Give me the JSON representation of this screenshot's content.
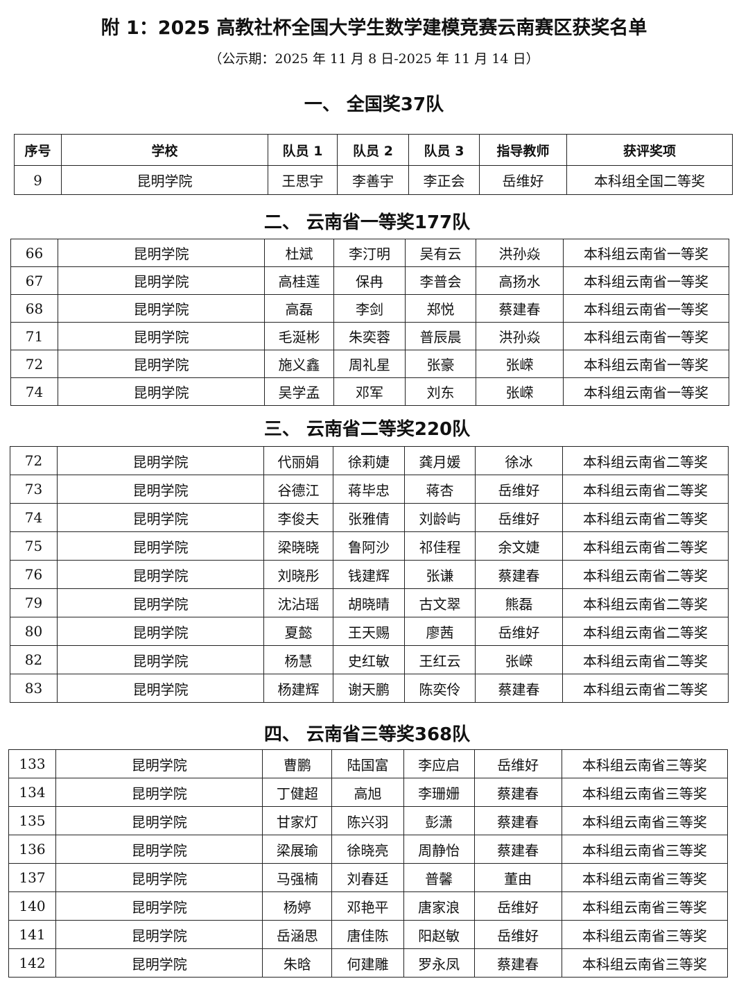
{
  "title": "附 1：2025 高教社杯全国大学生数学建模竞赛云南赛区获奖名单",
  "subtitle": "（公示期：2025 年 11 月 8 日-2025 年 11 月 14 日）",
  "columns": [
    "序号",
    "学校",
    "队员 1",
    "队员 2",
    "队员 3",
    "指导教师",
    "获评奖项"
  ],
  "sections": [
    {
      "heading": "一、  全国奖37队",
      "rows": [
        [
          "9",
          "昆明学院",
          "王思宇",
          "李善宇",
          "李正会",
          "岳维好",
          "本科组全国二等奖"
        ]
      ]
    },
    {
      "heading": "二、  云南省一等奖177队",
      "rows": [
        [
          "66",
          "昆明学院",
          "杜斌",
          "李汀明",
          "吴有云",
          "洪孙焱",
          "本科组云南省一等奖"
        ],
        [
          "67",
          "昆明学院",
          "高桂莲",
          "保冉",
          "李普会",
          "高扬水",
          "本科组云南省一等奖"
        ],
        [
          "68",
          "昆明学院",
          "高磊",
          "李剑",
          "郑悦",
          "蔡建春",
          "本科组云南省一等奖"
        ],
        [
          "71",
          "昆明学院",
          "毛涎彬",
          "朱奕蓉",
          "普辰晨",
          "洪孙焱",
          "本科组云南省一等奖"
        ],
        [
          "72",
          "昆明学院",
          "施义鑫",
          "周礼星",
          "张豪",
          "张嵘",
          "本科组云南省一等奖"
        ],
        [
          "74",
          "昆明学院",
          "吴学孟",
          "邓军",
          "刘东",
          "张嵘",
          "本科组云南省一等奖"
        ]
      ]
    },
    {
      "heading": "三、  云南省二等奖220队",
      "rows": [
        [
          "72",
          "昆明学院",
          "代丽娟",
          "徐莉婕",
          "龚月媛",
          "徐冰",
          "本科组云南省二等奖"
        ],
        [
          "73",
          "昆明学院",
          "谷德江",
          "蒋毕忠",
          "蒋杏",
          "岳维好",
          "本科组云南省二等奖"
        ],
        [
          "74",
          "昆明学院",
          "李俊夫",
          "张雅倩",
          "刘龄屿",
          "岳维好",
          "本科组云南省二等奖"
        ],
        [
          "75",
          "昆明学院",
          "梁晓晓",
          "鲁阿沙",
          "祁佳程",
          "余文婕",
          "本科组云南省二等奖"
        ],
        [
          "76",
          "昆明学院",
          "刘晓彤",
          "钱建辉",
          "张谦",
          "蔡建春",
          "本科组云南省二等奖"
        ],
        [
          "79",
          "昆明学院",
          "沈沾瑶",
          "胡晓晴",
          "古文翠",
          "熊磊",
          "本科组云南省二等奖"
        ],
        [
          "80",
          "昆明学院",
          "夏懿",
          "王天赐",
          "廖茜",
          "岳维好",
          "本科组云南省二等奖"
        ],
        [
          "82",
          "昆明学院",
          "杨慧",
          "史红敏",
          "王红云",
          "张嵘",
          "本科组云南省二等奖"
        ],
        [
          "83",
          "昆明学院",
          "杨建辉",
          "谢天鹏",
          "陈奕伶",
          "蔡建春",
          "本科组云南省二等奖"
        ]
      ]
    },
    {
      "heading": "四、  云南省三等奖368队",
      "rows": [
        [
          "133",
          "昆明学院",
          "曹鹏",
          "陆国富",
          "李应启",
          "岳维好",
          "本科组云南省三等奖"
        ],
        [
          "134",
          "昆明学院",
          "丁健超",
          "高旭",
          "李珊姗",
          "蔡建春",
          "本科组云南省三等奖"
        ],
        [
          "135",
          "昆明学院",
          "甘家灯",
          "陈兴羽",
          "彭潇",
          "蔡建春",
          "本科组云南省三等奖"
        ],
        [
          "136",
          "昆明学院",
          "梁展瑜",
          "徐晓亮",
          "周静怡",
          "蔡建春",
          "本科组云南省三等奖"
        ],
        [
          "137",
          "昆明学院",
          "马强楠",
          "刘春廷",
          "普馨",
          "董由",
          "本科组云南省三等奖"
        ],
        [
          "140",
          "昆明学院",
          "杨婷",
          "邓艳平",
          "唐家浪",
          "岳维好",
          "本科组云南省三等奖"
        ],
        [
          "141",
          "昆明学院",
          "岳涵思",
          "唐佳陈",
          "阳赵敏",
          "岳维好",
          "本科组云南省三等奖"
        ],
        [
          "142",
          "昆明学院",
          "朱晗",
          "何建雕",
          "罗永凤",
          "蔡建春",
          "本科组云南省三等奖"
        ]
      ]
    }
  ]
}
